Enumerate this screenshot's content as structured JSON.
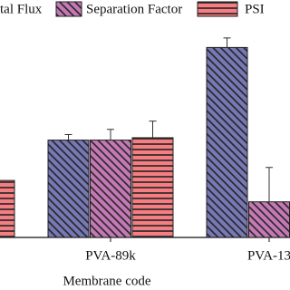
{
  "chart_data": {
    "type": "bar",
    "x_label": "Membrane code",
    "categories": [
      null,
      "PVA-89k",
      "PVA-13"
    ],
    "series": [
      {
        "name": "tal Flux",
        "color": "#4b4b9c",
        "hatch": "diagonal",
        "values": [
          null,
          41,
          80
        ],
        "errors": [
          null,
          2.3,
          4
        ]
      },
      {
        "name": "Separation Factor",
        "color": "#b04c9c",
        "hatch": "diagonal",
        "values": [
          null,
          41,
          15
        ],
        "errors": [
          null,
          4.5,
          14.5
        ]
      },
      {
        "name": "PSI",
        "color": "#f05256",
        "hatch": "horizontal",
        "values": [
          24,
          42,
          null
        ],
        "errors": [
          null,
          7,
          null
        ]
      }
    ],
    "ylim": [
      0,
      100
    ]
  }
}
